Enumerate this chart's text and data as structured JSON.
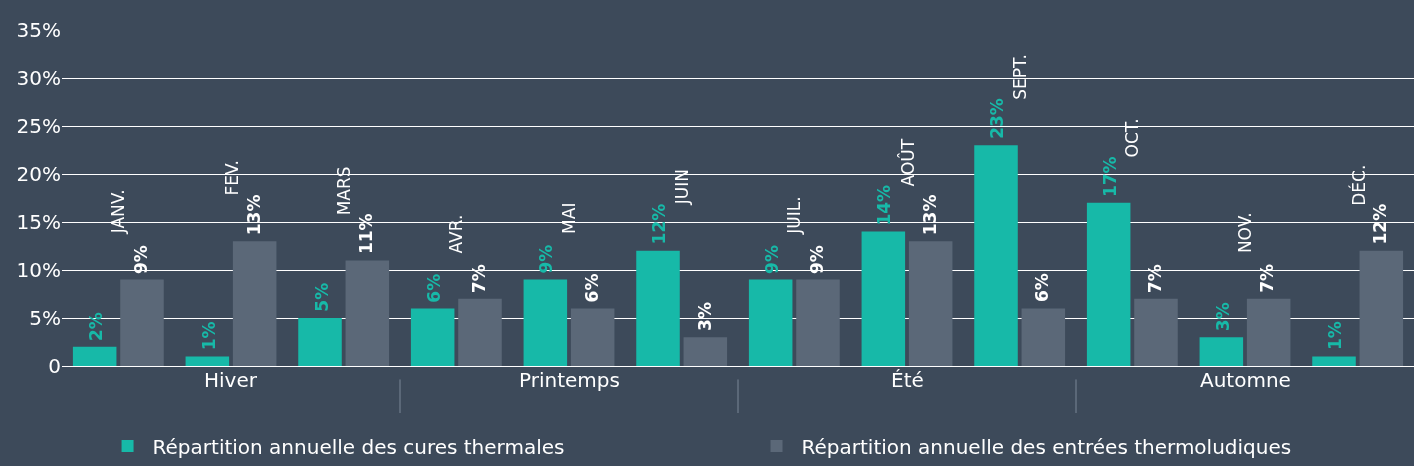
{
  "chart_data": {
    "type": "bar",
    "categories": [
      "JANV.",
      "FEV.",
      "MARS",
      "AVR.",
      "MAI",
      "JUIN",
      "JUIL.",
      "AOÛT",
      "SEPT.",
      "OCT.",
      "NOV.",
      "DÉC."
    ],
    "series": [
      {
        "name": "Répartition annuelle des cures thermales",
        "color": "#17b9a8",
        "values": [
          2,
          1,
          5,
          6,
          9,
          12,
          9,
          14,
          23,
          17,
          3,
          1
        ],
        "value_labels": [
          "2%",
          "1%",
          "5%",
          "6%",
          "9%",
          "12%",
          "9%",
          "14%",
          "23%",
          "17%",
          "3%",
          "1%"
        ]
      },
      {
        "name": "Répartition annuelle des entrées thermoludiques",
        "color": "#5b6878",
        "values": [
          9,
          13,
          11,
          7,
          6,
          3,
          9,
          13,
          6,
          7,
          7,
          12
        ],
        "value_labels": [
          "9%",
          "13%",
          "11%",
          "7%",
          "6%",
          "3%",
          "9%",
          "13%",
          "6%",
          "7%",
          "7%",
          "12%"
        ]
      }
    ],
    "ylim": [
      0,
      35
    ],
    "yticks": [
      0,
      {
        "value": 5,
        "label": "5%"
      },
      {
        "value": 10,
        "label": "10%"
      },
      {
        "value": 15,
        "label": "15%"
      },
      {
        "value": 20,
        "label": "20%"
      },
      {
        "value": 25,
        "label": "25%"
      },
      {
        "value": 30,
        "label": "30%"
      },
      {
        "value": 35,
        "label": "35%"
      }
    ],
    "grid": "y",
    "legend": "bottom",
    "annotations": [
      "Hiver",
      "Printemps",
      "Été",
      "Automne"
    ]
  }
}
